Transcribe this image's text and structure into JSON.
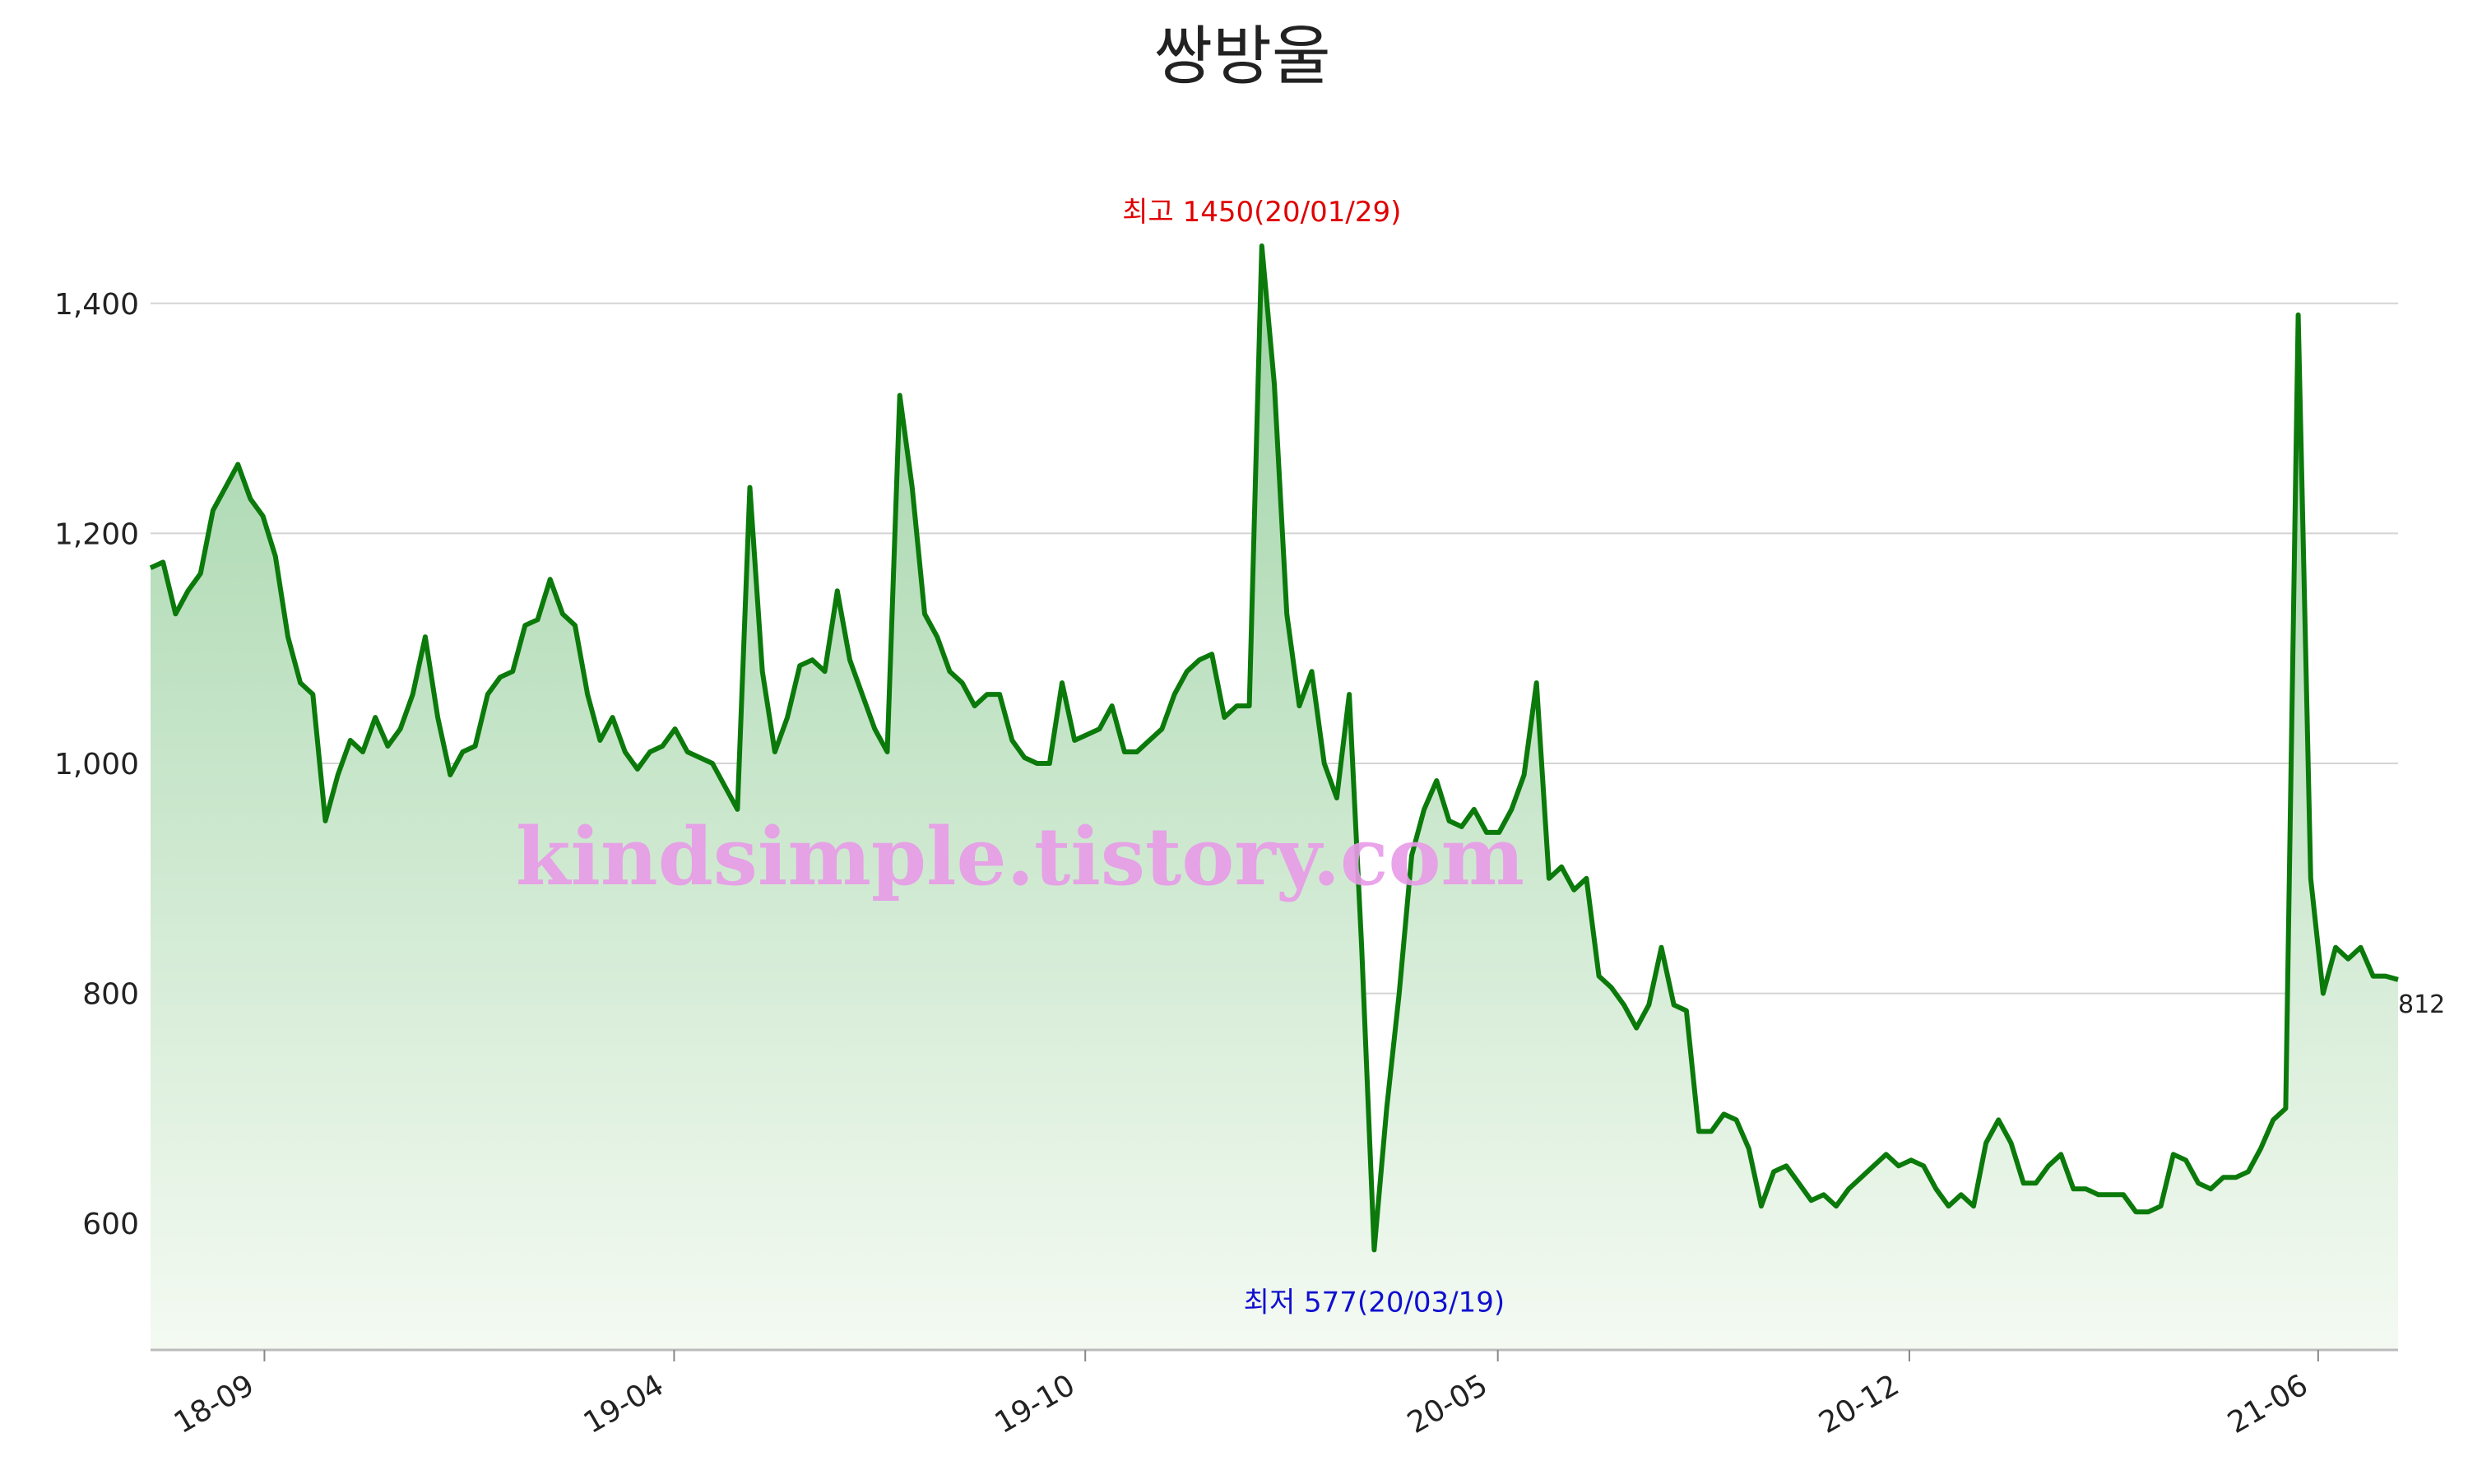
{
  "chart_data": {
    "type": "line",
    "title": "쌍방울",
    "watermark": "kindsimple.tistory.com",
    "annotations": {
      "max": "최고 1450(20/01/29)",
      "min": "최저 577(20/03/19)"
    },
    "colors": {
      "line": "#0b7a0b",
      "max": "#e00000",
      "min": "#1010d0",
      "watermark": "#e89be8"
    },
    "grid": true,
    "ylim": [
      490,
      1500
    ],
    "yticks": [
      {
        "value": 600,
        "label": "600"
      },
      {
        "value": 800,
        "label": "800"
      },
      {
        "value": 1000,
        "label": "1,000"
      },
      {
        "value": 1200,
        "label": "1,200"
      },
      {
        "value": 1400,
        "label": "1,400"
      }
    ],
    "xlim": [
      0,
      180
    ],
    "xticks": [
      {
        "value": 9.12,
        "label": "18-09"
      },
      {
        "value": 41.93,
        "label": "19-04"
      },
      {
        "value": 74.86,
        "label": "19-10"
      },
      {
        "value": 107.9,
        "label": "20-05"
      },
      {
        "value": 140.86,
        "label": "20-12"
      },
      {
        "value": 173.6,
        "label": "21-06"
      }
    ],
    "values": [
      1170,
      1175,
      1130,
      1150,
      1165,
      1220,
      1240,
      1260,
      1230,
      1215,
      1180,
      1110,
      1070,
      1060,
      950,
      990,
      1020,
      1010,
      1040,
      1015,
      1030,
      1060,
      1110,
      1040,
      990,
      1010,
      1015,
      1060,
      1075,
      1080,
      1120,
      1125,
      1160,
      1130,
      1120,
      1060,
      1020,
      1040,
      1010,
      995,
      1010,
      1015,
      1030,
      1010,
      1005,
      1000,
      980,
      960,
      1240,
      1080,
      1010,
      1040,
      1085,
      1090,
      1080,
      1150,
      1090,
      1060,
      1030,
      1010,
      1320,
      1240,
      1130,
      1110,
      1080,
      1070,
      1050,
      1060,
      1060,
      1020,
      1005,
      1000,
      1000,
      1070,
      1020,
      1025,
      1030,
      1050,
      1010,
      1010,
      1020,
      1030,
      1060,
      1080,
      1090,
      1095,
      1040,
      1050,
      1050,
      1450,
      1330,
      1130,
      1050,
      1080,
      1000,
      970,
      1060,
      840,
      577,
      700,
      800,
      920,
      960,
      985,
      950,
      945,
      960,
      940,
      940,
      960,
      990,
      1070,
      900,
      910,
      890,
      900,
      815,
      805,
      790,
      770,
      790,
      840,
      790,
      785,
      680,
      680,
      695,
      690,
      665,
      615,
      645,
      650,
      635,
      620,
      625,
      615,
      630,
      640,
      650,
      660,
      650,
      655,
      650,
      630,
      615,
      625,
      615,
      670,
      690,
      670,
      635,
      635,
      650,
      660,
      630,
      630,
      625,
      625,
      625,
      610,
      610,
      615,
      660,
      655,
      635,
      630,
      640,
      640,
      645,
      665,
      690,
      700,
      1390,
      900,
      800,
      840,
      830,
      840,
      815,
      815,
      812
    ]
  }
}
